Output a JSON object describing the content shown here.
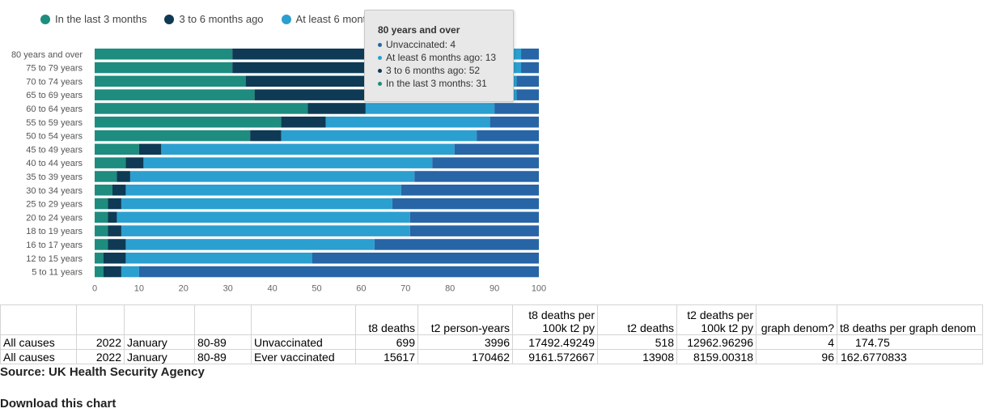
{
  "chart_data": {
    "type": "bar",
    "orientation": "horizontal",
    "stacked": true,
    "xlim": [
      0,
      100
    ],
    "xticks": [
      "0",
      "10",
      "20",
      "30",
      "40",
      "50",
      "60",
      "70",
      "80",
      "90",
      "100"
    ],
    "legend_position": "top-left",
    "grid": false,
    "categories": [
      "80 years and over",
      "75 to 79 years",
      "70 to 74 years",
      "65 to 69 years",
      "60 to 64 years",
      "55 to 59 years",
      "50 to 54 years",
      "45 to 49 years",
      "40 to 44 years",
      "35 to 39 years",
      "30 to 34 years",
      "25 to 29 years",
      "20 to 24 years",
      "18 to 19 years",
      "16 to 17 years",
      "12 to 15 years",
      "5 to 11 years"
    ],
    "series": [
      {
        "name": "In the last 3 months",
        "color": "#1e8c7e",
        "values": [
          31,
          31,
          34,
          36,
          48,
          42,
          35,
          10,
          7,
          5,
          4,
          3,
          3,
          3,
          3,
          2,
          2
        ]
      },
      {
        "name": "3 to 6 months ago",
        "color": "#0e3a55",
        "values": [
          52,
          53,
          48,
          45,
          13,
          10,
          7,
          5,
          4,
          3,
          3,
          3,
          2,
          3,
          4,
          5,
          4
        ]
      },
      {
        "name": "At least 6 months ago",
        "color": "#2b9fd0",
        "values": [
          13,
          12,
          13,
          14,
          29,
          37,
          44,
          66,
          65,
          64,
          62,
          61,
          66,
          65,
          56,
          42,
          4
        ]
      },
      {
        "name": "Unvaccinated",
        "color": "#2765a6",
        "values": [
          4,
          4,
          5,
          5,
          10,
          11,
          14,
          19,
          24,
          28,
          31,
          33,
          29,
          29,
          37,
          51,
          90
        ]
      }
    ]
  },
  "legend": {
    "items": [
      {
        "label": "In the last 3 months",
        "color": "#1e8c7e"
      },
      {
        "label": "3 to 6 months ago",
        "color": "#0e3a55"
      },
      {
        "label": "At least 6 mont",
        "color": "#2b9fd0"
      }
    ]
  },
  "tooltip": {
    "title": "80 years and over",
    "rows": [
      {
        "text": "Unvaccinated: 4",
        "color": "#2765a6"
      },
      {
        "text": "At least 6 months ago: 13",
        "color": "#2b9fd0"
      },
      {
        "text": "3 to 6 months ago: 52",
        "color": "#0e3a55"
      },
      {
        "text": "In the last 3 months: 31",
        "color": "#1e8c7e"
      }
    ]
  },
  "table": {
    "headers": [
      "",
      "",
      "",
      "",
      "",
      "t8 deaths",
      "t2 person-years",
      "t8 deaths per 100k t2 py",
      "t2 deaths",
      "t2 deaths per 100k t2 py",
      "graph denom?",
      "t8 deaths per graph denom"
    ],
    "rows": [
      [
        "All causes",
        "2022",
        "January",
        "80-89",
        "Unvaccinated",
        "699",
        "3996",
        "17492.49249",
        "518",
        "12962.96296",
        "4",
        "174.75"
      ],
      [
        "All causes",
        "2022",
        "January",
        "80-89",
        "Ever vaccinated",
        "15617",
        "170462",
        "9161.572667",
        "13908",
        "8159.00318",
        "96",
        "162.6770833"
      ]
    ]
  },
  "source": "Source: UK Health Security Agency",
  "download": "Download this chart"
}
